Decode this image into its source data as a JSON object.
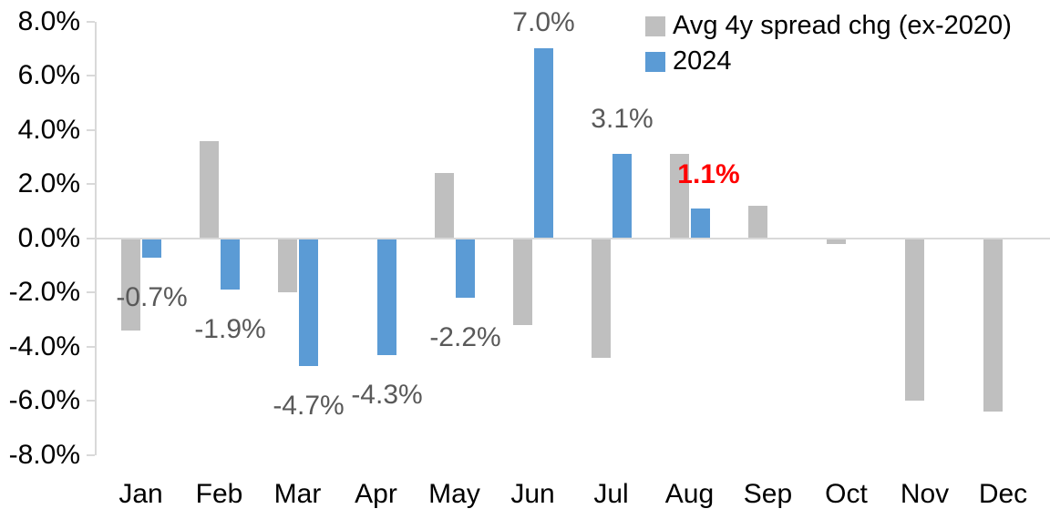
{
  "chart_data": {
    "type": "bar",
    "title": "",
    "unit": "percent",
    "categories": [
      "Jan",
      "Feb",
      "Mar",
      "Apr",
      "May",
      "Jun",
      "Jul",
      "Aug",
      "Sep",
      "Oct",
      "Nov",
      "Dec"
    ],
    "series": [
      {
        "name": "Avg 4y spread chg (ex-2020)",
        "color": "#BFBFBF",
        "values": [
          -3.4,
          3.6,
          -2.0,
          0.0,
          2.4,
          -3.2,
          -4.4,
          3.1,
          1.2,
          -0.2,
          -6.0,
          -6.4
        ]
      },
      {
        "name": "2024",
        "color": "#5B9BD5",
        "values": [
          -0.7,
          -1.9,
          -4.7,
          -4.3,
          -2.2,
          7.0,
          3.1,
          1.1,
          null,
          null,
          null,
          null
        ]
      }
    ],
    "data_labels": [
      {
        "category": "Jan",
        "series": "2024",
        "text": "-0.7%",
        "color": "#595959",
        "bold": false
      },
      {
        "category": "Feb",
        "series": "2024",
        "text": "-1.9%",
        "color": "#595959",
        "bold": false
      },
      {
        "category": "Mar",
        "series": "2024",
        "text": "-4.7%",
        "color": "#595959",
        "bold": false
      },
      {
        "category": "Apr",
        "series": "2024",
        "text": "-4.3%",
        "color": "#595959",
        "bold": false
      },
      {
        "category": "May",
        "series": "2024",
        "text": "-2.2%",
        "color": "#595959",
        "bold": false
      },
      {
        "category": "Jun",
        "series": "2024",
        "text": "7.0%",
        "color": "#595959",
        "bold": false
      },
      {
        "category": "Jul",
        "series": "2024",
        "text": "3.1%",
        "color": "#595959",
        "bold": false
      },
      {
        "category": "Aug",
        "series": "2024",
        "text": "1.1%",
        "color": "#FF0000",
        "bold": true
      }
    ],
    "y_axis": {
      "ticks": [
        "8.0%",
        "6.0%",
        "4.0%",
        "2.0%",
        "0.0%",
        "-2.0%",
        "-4.0%",
        "-6.0%",
        "-8.0%"
      ],
      "min": -8,
      "max": 8,
      "step": 2
    },
    "grid": "off",
    "legend_position": "top-right",
    "colors": {
      "background": "#FFFFFF",
      "axis_line": "#D9D9D9",
      "axis_text": "#000000",
      "data_label_text": "#595959",
      "highlight_label_text": "#FF0000"
    }
  }
}
